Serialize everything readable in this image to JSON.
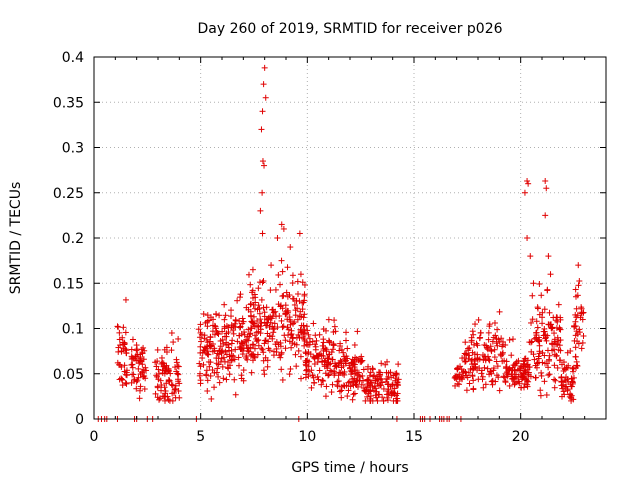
{
  "chart_data": {
    "type": "scatter",
    "title": "Day 260 of 2019, SRMTID for receiver p026",
    "xlabel": "GPS time / hours",
    "ylabel": "SRMTID / TECUs",
    "xlim": [
      0,
      24
    ],
    "ylim": [
      0,
      0.4
    ],
    "grid": true,
    "marker": "+",
    "color": "#e00000",
    "x_ticks": [
      {
        "value": 0,
        "label": "0"
      },
      {
        "value": 5,
        "label": "5"
      },
      {
        "value": 10,
        "label": "10"
      },
      {
        "value": 15,
        "label": "15"
      },
      {
        "value": 20,
        "label": "20"
      }
    ],
    "y_ticks": [
      {
        "value": 0,
        "label": "0"
      },
      {
        "value": 0.05,
        "label": "0.05"
      },
      {
        "value": 0.1,
        "label": "0.1"
      },
      {
        "value": 0.15,
        "label": "0.15"
      },
      {
        "value": 0.2,
        "label": "0.2"
      },
      {
        "value": 0.25,
        "label": "0.25"
      },
      {
        "value": 0.3,
        "label": "0.3"
      },
      {
        "value": 0.35,
        "label": "0.35"
      },
      {
        "value": 0.4,
        "label": "0.4"
      }
    ],
    "clusters": [
      {
        "x_start": 1.1,
        "x_end": 1.55,
        "base": 0.07,
        "spread": 0.025,
        "peak": 0.14,
        "count": 40
      },
      {
        "x_start": 1.75,
        "x_end": 2.45,
        "base": 0.06,
        "spread": 0.02,
        "peak": 0.1,
        "count": 55
      },
      {
        "x_start": 2.85,
        "x_end": 4.0,
        "base": 0.045,
        "spread": 0.02,
        "peak": 0.11,
        "count": 80
      },
      {
        "x_start": 4.9,
        "x_end": 5.6,
        "base": 0.075,
        "spread": 0.035,
        "peak": 0.14,
        "count": 60
      },
      {
        "x_start": 5.6,
        "x_end": 7.2,
        "base": 0.08,
        "spread": 0.03,
        "peak": 0.15,
        "count": 130
      },
      {
        "x_start": 7.2,
        "x_end": 8.6,
        "base": 0.1,
        "spread": 0.035,
        "peak": 0.17,
        "count": 130
      },
      {
        "x_start": 8.6,
        "x_end": 9.9,
        "base": 0.1,
        "spread": 0.035,
        "peak": 0.2,
        "count": 110
      },
      {
        "x_start": 9.9,
        "x_end": 11.4,
        "base": 0.065,
        "spread": 0.025,
        "peak": 0.11,
        "count": 120
      },
      {
        "x_start": 11.4,
        "x_end": 12.6,
        "base": 0.055,
        "spread": 0.02,
        "peak": 0.1,
        "count": 100
      },
      {
        "x_start": 12.6,
        "x_end": 14.3,
        "base": 0.035,
        "spread": 0.015,
        "peak": 0.07,
        "count": 120
      },
      {
        "x_start": 16.9,
        "x_end": 17.3,
        "base": 0.045,
        "spread": 0.012,
        "peak": 0.07,
        "count": 25
      },
      {
        "x_start": 17.3,
        "x_end": 19.2,
        "base": 0.065,
        "spread": 0.025,
        "peak": 0.13,
        "count": 130
      },
      {
        "x_start": 19.2,
        "x_end": 20.4,
        "base": 0.05,
        "spread": 0.015,
        "peak": 0.09,
        "count": 90
      },
      {
        "x_start": 20.4,
        "x_end": 21.9,
        "base": 0.08,
        "spread": 0.035,
        "peak": 0.15,
        "count": 120
      },
      {
        "x_start": 21.9,
        "x_end": 22.5,
        "base": 0.04,
        "spread": 0.015,
        "peak": 0.08,
        "count": 50
      },
      {
        "x_start": 22.5,
        "x_end": 22.95,
        "base": 0.1,
        "spread": 0.035,
        "peak": 0.16,
        "count": 40
      }
    ],
    "spikes": [
      {
        "x": 7.85,
        "y": 0.32
      },
      {
        "x": 7.9,
        "y": 0.34
      },
      {
        "x": 7.95,
        "y": 0.37
      },
      {
        "x": 8.0,
        "y": 0.388
      },
      {
        "x": 8.05,
        "y": 0.355
      },
      {
        "x": 7.92,
        "y": 0.285
      },
      {
        "x": 7.88,
        "y": 0.25
      },
      {
        "x": 7.97,
        "y": 0.28
      },
      {
        "x": 7.8,
        "y": 0.23
      },
      {
        "x": 7.9,
        "y": 0.205
      },
      {
        "x": 8.6,
        "y": 0.2
      },
      {
        "x": 8.8,
        "y": 0.215
      },
      {
        "x": 8.9,
        "y": 0.21
      },
      {
        "x": 9.2,
        "y": 0.19
      },
      {
        "x": 9.65,
        "y": 0.205
      },
      {
        "x": 8.3,
        "y": 0.17
      },
      {
        "x": 9.7,
        "y": 0.16
      },
      {
        "x": 7.45,
        "y": 0.165
      },
      {
        "x": 20.3,
        "y": 0.263
      },
      {
        "x": 20.35,
        "y": 0.26
      },
      {
        "x": 20.2,
        "y": 0.25
      },
      {
        "x": 20.3,
        "y": 0.2
      },
      {
        "x": 20.45,
        "y": 0.18
      },
      {
        "x": 21.15,
        "y": 0.263
      },
      {
        "x": 21.2,
        "y": 0.255
      },
      {
        "x": 21.15,
        "y": 0.225
      },
      {
        "x": 21.3,
        "y": 0.18
      },
      {
        "x": 21.4,
        "y": 0.16
      },
      {
        "x": 22.7,
        "y": 0.17
      },
      {
        "x": 20.6,
        "y": 0.15
      }
    ],
    "zero_points_x": [
      0.2,
      0.35,
      0.5,
      0.6,
      1.1,
      1.9,
      2.0,
      2.5,
      2.75,
      4.8,
      9.6,
      14.2,
      15.3,
      15.4,
      15.5,
      15.75,
      16.2,
      16.3,
      16.4,
      16.55,
      16.65,
      17.2
    ]
  }
}
